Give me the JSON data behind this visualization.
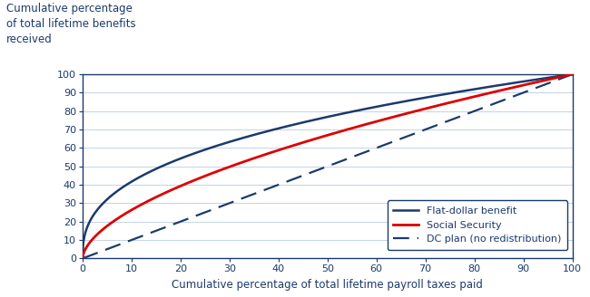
{
  "title_ylabel_line1": "Cumulative percentage",
  "title_ylabel_line2": "of total lifetime benefits",
  "title_ylabel_line3": "received",
  "xlabel": "Cumulative percentage of total lifetime payroll taxes paid",
  "xlim": [
    0,
    100
  ],
  "ylim": [
    0,
    100
  ],
  "xticks": [
    0,
    10,
    20,
    30,
    40,
    50,
    60,
    70,
    80,
    90,
    100
  ],
  "yticks": [
    0,
    10,
    20,
    30,
    40,
    50,
    60,
    70,
    80,
    90,
    100
  ],
  "flat_dollar_color": "#1b3a6b",
  "social_security_color": "#dd0000",
  "dc_plan_color": "#1b3a6b",
  "legend_labels": [
    "Flat-dollar benefit",
    "Social Security",
    "DC plan (no redistribution)"
  ],
  "background_color": "#ffffff",
  "grid_color": "#b8cce4",
  "axis_color": "#1b3a6b",
  "label_color": "#1b3a6b",
  "font_size_axis_label": 8.5,
  "font_size_tick": 8,
  "font_size_ylabel": 8.5,
  "flat_dollar_power": 0.38,
  "social_security_power": 0.58,
  "dc_plan_power": 1.0
}
